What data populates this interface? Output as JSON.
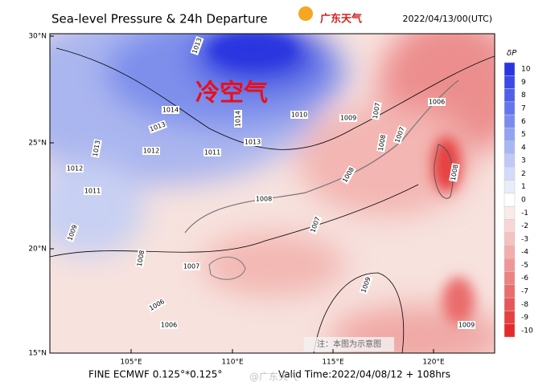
{
  "header": {
    "title": "Sea-level Pressure & 24h Departure",
    "logo": "广东天气",
    "time": "2022/04/13/00(UTC)"
  },
  "map": {
    "lat_labels": [
      "30°N",
      "25°N",
      "20°N",
      "15°N"
    ],
    "lon_labels": [
      "105°E",
      "110°E",
      "115°E",
      "120°E"
    ],
    "annotation": "冷空气",
    "note": "注：本图为示意图",
    "isobar_labels": [
      "1013",
      "1014",
      "1013",
      "1012",
      "1011",
      "1014",
      "1013",
      "1010",
      "1009",
      "1007",
      "1006",
      "1008",
      "1008",
      "1007",
      "1008",
      "1007",
      "1007",
      "1012",
      "1011",
      "1013",
      "1009",
      "1008",
      "1006",
      "1006",
      "1009",
      "1009",
      "1008"
    ]
  },
  "colorbar": {
    "title": "δP",
    "ticks": [
      10,
      9,
      8,
      7,
      6,
      5,
      4,
      3,
      2,
      1,
      0,
      -1,
      -2,
      -3,
      -4,
      -5,
      -6,
      -7,
      -8,
      -9,
      -10
    ],
    "colors": [
      "#2a35e0",
      "#3b4ae6",
      "#4f60e8",
      "#6476ec",
      "#7b8cf0",
      "#93a2f2",
      "#a9b6f4",
      "#bfc9f6",
      "#d3dbf8",
      "#e8ecfb",
      "#ffffff",
      "#fbeaea",
      "#f8d6d6",
      "#f5c2c2",
      "#f2adad",
      "#ef9797",
      "#ec8282",
      "#ea6c6c",
      "#e85656",
      "#e64040",
      "#e42a2a"
    ]
  },
  "footer": {
    "model": "FINE ECMWF 0.125°*0.125°",
    "valid": "Valid Time:2022/04/08/12 + 108hrs",
    "watermark": "@广东天气"
  }
}
